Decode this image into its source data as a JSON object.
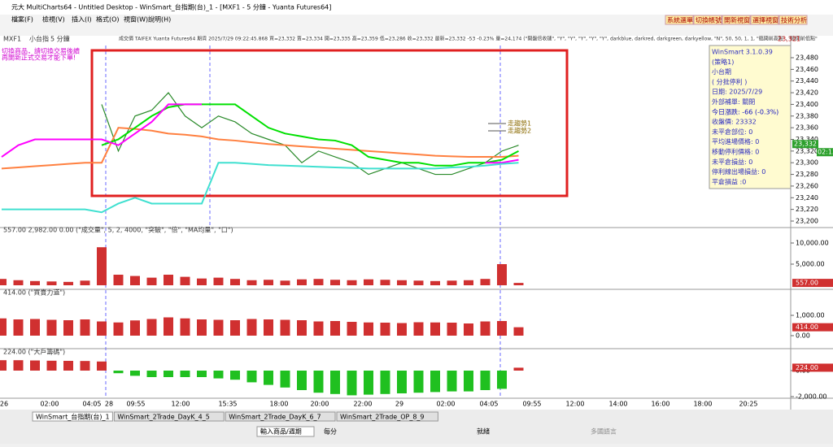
{
  "window": {
    "title": "元大 MultiCharts64 - Untitled Desktop - WinSmart_台指期(台)_1 - [MXF1 - 5 分鐘 - Yuanta Futures64]"
  },
  "menu": [
    "檔案(F)",
    "檢視(V)",
    "插入(I)",
    "格式(O)",
    "視窗(W)",
    "說明(H)"
  ],
  "toolbar_buttons": [
    "系統選單",
    "切換帳號",
    "開新視窗",
    "選擇視窗",
    "技術分析"
  ],
  "chart_header": {
    "symbol": "MXF1",
    "name": "小台指",
    "interval": "5 分鐘",
    "quote": "成交價 TAIFEX Yuanta Futures64 期貨 2025/7/29 09:22:45.868 買=23,332 賣=23,334 開=23,335 高=23,359 低=23,286 收=23,332 最新=23,332 -53 -0.23% 量=24,174 (\"開盤倍收鏈\", \"Y\", \"Y\", \"Y\", \"Y\", \"Y\", darkblue, darkred, darkgreen, darkyellow, \"N\", 50, 50, 1, 1, \"臨開前高點\", \"臨開前低點\"",
    "right_price": "23,321"
  },
  "warning": [
    "切換商品，請切換交易後續",
    "再開新正式交易才能下單!"
  ],
  "info_box": [
    "WinSmart 3.1.0.39",
    "(策略1)",
    "小台期",
    "( 分批停利 )",
    "日期: 2025/7/29",
    "外部補單: 關閉",
    "今日漲跌: -66 (-0.3%)",
    "收盤價: 23332",
    "未平倉部位: 0",
    "平均進場價格: 0",
    "移動停利價格: 0",
    "未平倉損益: 0",
    "停利線出場損益: 0",
    "平倉損益 :0"
  ],
  "price_pane": {
    "yticks": [
      {
        "value": 23480,
        "label": "23,480"
      },
      {
        "value": 23460,
        "label": "23,460"
      },
      {
        "value": 23440,
        "label": "23,440"
      },
      {
        "value": 23420,
        "label": "23,420"
      },
      {
        "value": 23400,
        "label": "23,400"
      },
      {
        "value": 23380,
        "label": "23,380"
      },
      {
        "value": 23360,
        "label": "23,360"
      },
      {
        "value": 23340,
        "label": "23,340"
      },
      {
        "value": 23320,
        "label": "23,320"
      },
      {
        "value": 23300,
        "label": "23,300"
      },
      {
        "value": 23280,
        "label": "23,280"
      },
      {
        "value": 23260,
        "label": "23,260"
      },
      {
        "value": 23240,
        "label": "23,240"
      },
      {
        "value": 23220,
        "label": "23,220"
      },
      {
        "value": 23200,
        "label": "23,200"
      }
    ],
    "last_price": {
      "value": 23332,
      "label": "23,332"
    },
    "time_label": "02:13",
    "legend": [
      "走趨勢1",
      "走趨勢2"
    ],
    "lines": [
      {
        "color": "#2a8a2a",
        "values": [
          null,
          null,
          null,
          null,
          null,
          null,
          23400,
          23320,
          23380,
          23390,
          23420,
          23380,
          23360,
          23380,
          23370,
          23350,
          23340,
          23330,
          23300,
          23320,
          23310,
          23300,
          23280,
          23290,
          23300,
          23290,
          23280,
          23280,
          23290,
          23300,
          23320,
          23330
        ]
      },
      {
        "color": "#ff8040",
        "values": [
          23290,
          23292,
          23294,
          23296,
          23298,
          23300,
          23300,
          23360,
          23358,
          23355,
          23350,
          23348,
          23345,
          23340,
          23338,
          23335,
          23332,
          23330,
          23328,
          23326,
          23324,
          23322,
          23320,
          23318,
          23316,
          23314,
          23312,
          23311,
          23310,
          23310,
          23310,
          23312
        ]
      },
      {
        "color": "#00e000",
        "values": [
          null,
          null,
          null,
          null,
          null,
          null,
          23330,
          23340,
          23360,
          23380,
          23395,
          23400,
          23400,
          23400,
          23400,
          23380,
          23360,
          23350,
          23345,
          23340,
          23338,
          23330,
          23310,
          23305,
          23300,
          23300,
          23295,
          23295,
          23300,
          23300,
          23305,
          23320
        ]
      },
      {
        "color": "#ff00ff",
        "values": [
          23310,
          23330,
          23340,
          23340,
          23340,
          23340,
          23340,
          23330,
          23350,
          23370,
          23400,
          23400,
          23400,
          null,
          null,
          null,
          null,
          null,
          null,
          null,
          null,
          null,
          null,
          null,
          null,
          null,
          null,
          null,
          null,
          23300,
          23300,
          23305
        ]
      },
      {
        "color": "#40e0d0",
        "values": [
          23220,
          23220,
          23220,
          23220,
          23220,
          23220,
          23215,
          23230,
          23240,
          23230,
          23230,
          23230,
          23230,
          23300,
          23300,
          23298,
          23296,
          23295,
          23294,
          23293,
          23292,
          23291,
          23290,
          23290,
          23290,
          23290,
          23290,
          23292,
          23293,
          23295,
          23298,
          23300
        ]
      }
    ]
  },
  "volume_pane": {
    "header": "557.00 2,982.00 0.00 (\"成交量\", 5, 2, 4000, \"突破\", \"倍\", \"MA均量\", \"口\")",
    "last": {
      "value": 557,
      "label": "557.00"
    },
    "color": "#d03030",
    "yticks": [
      {
        "value": 10000,
        "label": "10,000.00"
      },
      {
        "value": 5000,
        "label": "5,000.00"
      }
    ],
    "values": [
      1500,
      1200,
      1000,
      900,
      800,
      1100,
      9000,
      2500,
      2200,
      1800,
      2500,
      2000,
      1600,
      1800,
      1500,
      1200,
      1300,
      1100,
      1400,
      1500,
      1300,
      1200,
      1400,
      1300,
      1200,
      1100,
      1000,
      1100,
      1200,
      1500,
      5000,
      557
    ]
  },
  "strength_pane": {
    "header": "414.00 (\"買賣力道\")",
    "last": {
      "value": 414,
      "label": "414.00"
    },
    "color": "#d03030",
    "yticks": [
      {
        "value": 1000,
        "label": "1,000.00"
      },
      {
        "value": 0,
        "label": "0.00"
      }
    ],
    "values": [
      850,
      800,
      820,
      780,
      760,
      800,
      700,
      650,
      750,
      820,
      900,
      850,
      800,
      780,
      760,
      820,
      800,
      780,
      760,
      700,
      720,
      680,
      650,
      640,
      620,
      660,
      650,
      640,
      600,
      700,
      720,
      414
    ]
  },
  "big_pane": {
    "header": "224.00 (\"大戶籌碼\")",
    "last": {
      "value": 224,
      "label": "224.00"
    },
    "pos_color": "#d03030",
    "neg_color": "#20c020",
    "yticks": [
      {
        "value": 0,
        "label": "0.00"
      },
      {
        "value": -2000,
        "label": "-2,000.00"
      }
    ],
    "values": [
      800,
      800,
      780,
      760,
      750,
      740,
      700,
      -200,
      -400,
      -500,
      -500,
      -500,
      -500,
      -600,
      -700,
      -900,
      -1100,
      -1300,
      -1500,
      -1700,
      -1800,
      -1900,
      -1850,
      -1800,
      -1750,
      -1700,
      -1650,
      -1600,
      -1600,
      -1500,
      -1400,
      224
    ]
  },
  "x_axis": {
    "labels": [
      "26",
      "02:00",
      "04:05",
      "28",
      "09:55",
      "12:00",
      "15:35",
      "18:00",
      "20:00",
      "22:00",
      "29",
      "02:00",
      "04:05",
      "09:55",
      "12:00",
      "14:00",
      "16:00",
      "18:00",
      "20:25"
    ]
  },
  "tabs": [
    "WinSmart_台指期(台)_1",
    "WinSmart_2Trade_DayK_4_5",
    "WinSmart_2Trade_DayK_6_7",
    "WinSmart_2Trade_OP_8_9"
  ],
  "status": {
    "symbol_input": "輸入商品/週期",
    "period": "每分",
    "state": "就緒",
    "language": "多國語言"
  }
}
